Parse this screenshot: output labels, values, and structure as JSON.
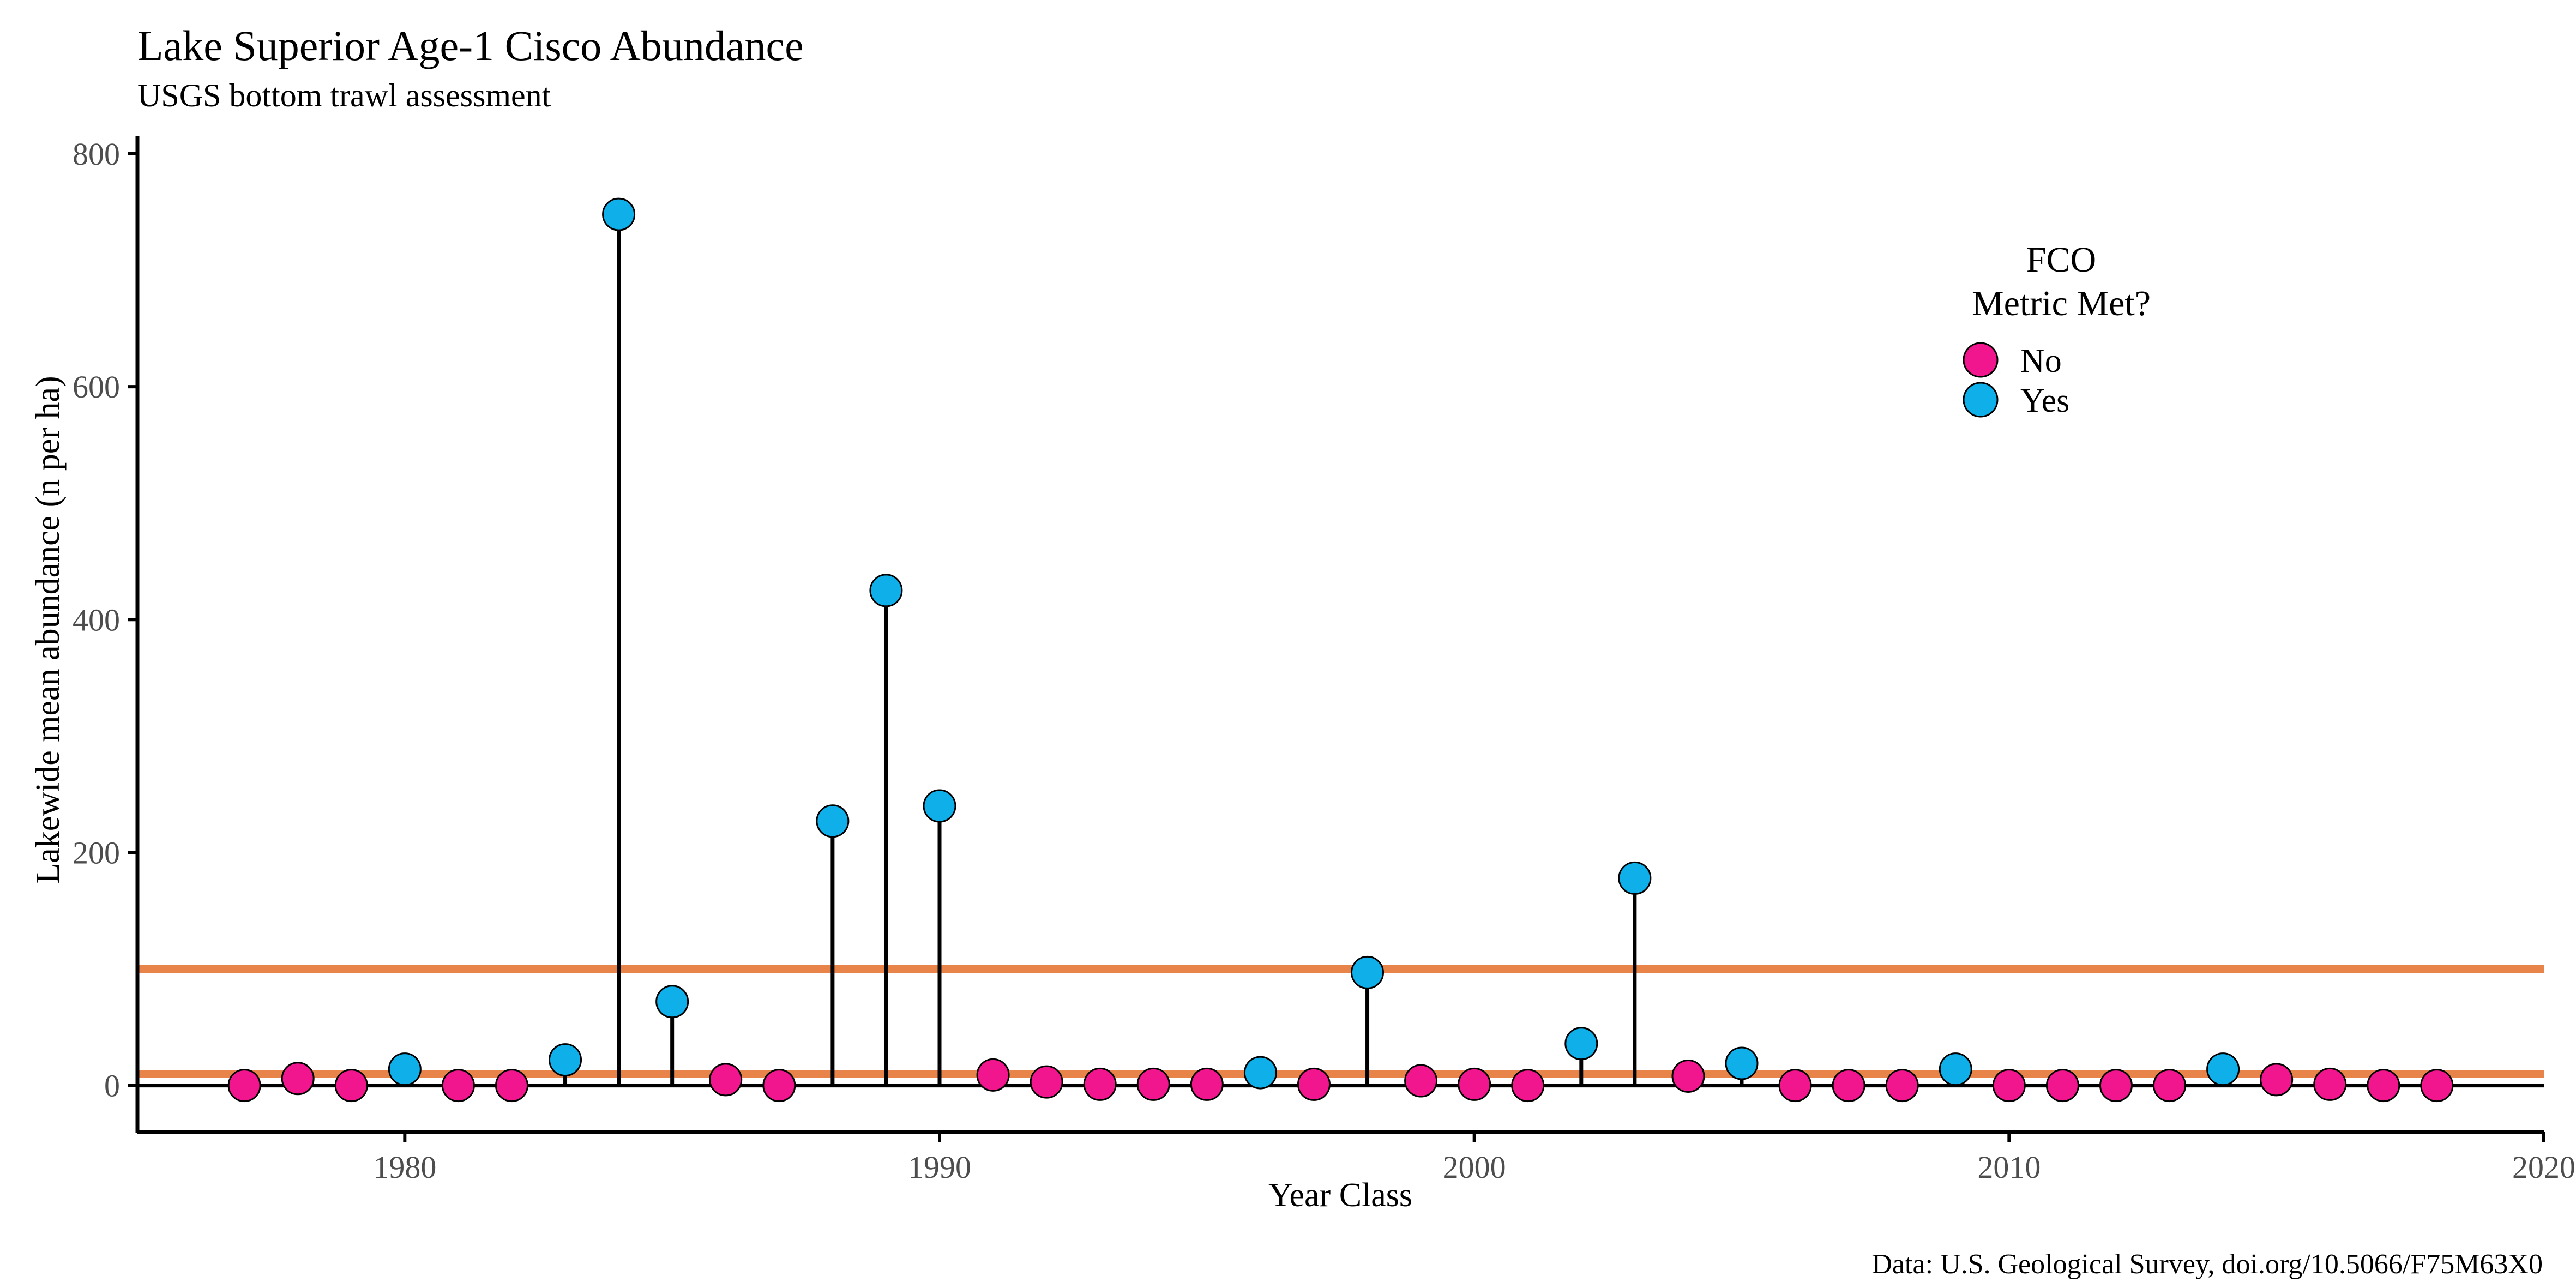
{
  "chart_data": {
    "type": "lollipop",
    "title": "Lake Superior Age-1 Cisco Abundance",
    "subtitle": "USGS bottom trawl assessment",
    "xlabel": "Year Class",
    "ylabel": "Lakewide mean abundance (n per ha)",
    "caption": "Data: U.S. Geological Survey, doi.org/10.5066/F75M63X0",
    "xlim": [
      1975,
      2020
    ],
    "ylim": [
      -40,
      815
    ],
    "x_ticks": [
      1980,
      1990,
      2000,
      2010,
      2020
    ],
    "y_ticks": [
      0,
      200,
      400,
      600,
      800
    ],
    "reference_lines": [
      {
        "y": 10,
        "color": "#E8844A"
      },
      {
        "y": 100,
        "color": "#E8844A"
      }
    ],
    "baseline": 0,
    "legend": {
      "title_line1": "FCO",
      "title_line2": "Metric Met?",
      "position": "top-right",
      "items": [
        {
          "label": "No",
          "color": "#F2168E"
        },
        {
          "label": "Yes",
          "color": "#0FB0EA"
        }
      ]
    },
    "points": [
      {
        "x": 1977,
        "y": 0,
        "met": "No"
      },
      {
        "x": 1978,
        "y": 6,
        "met": "No"
      },
      {
        "x": 1979,
        "y": 0,
        "met": "No"
      },
      {
        "x": 1980,
        "y": 14,
        "met": "Yes"
      },
      {
        "x": 1981,
        "y": 0,
        "met": "No"
      },
      {
        "x": 1982,
        "y": 0,
        "met": "No"
      },
      {
        "x": 1983,
        "y": 22,
        "met": "Yes"
      },
      {
        "x": 1984,
        "y": 748,
        "met": "Yes"
      },
      {
        "x": 1985,
        "y": 72,
        "met": "Yes"
      },
      {
        "x": 1986,
        "y": 5,
        "met": "No"
      },
      {
        "x": 1987,
        "y": 0,
        "met": "No"
      },
      {
        "x": 1988,
        "y": 227,
        "met": "Yes"
      },
      {
        "x": 1989,
        "y": 425,
        "met": "Yes"
      },
      {
        "x": 1990,
        "y": 240,
        "met": "Yes"
      },
      {
        "x": 1991,
        "y": 9,
        "met": "No"
      },
      {
        "x": 1992,
        "y": 3,
        "met": "No"
      },
      {
        "x": 1993,
        "y": 1,
        "met": "No"
      },
      {
        "x": 1994,
        "y": 1,
        "met": "No"
      },
      {
        "x": 1995,
        "y": 1,
        "met": "No"
      },
      {
        "x": 1996,
        "y": 11,
        "met": "Yes"
      },
      {
        "x": 1997,
        "y": 1,
        "met": "No"
      },
      {
        "x": 1998,
        "y": 97,
        "met": "Yes"
      },
      {
        "x": 1999,
        "y": 4,
        "met": "No"
      },
      {
        "x": 2000,
        "y": 1,
        "met": "No"
      },
      {
        "x": 2001,
        "y": 0,
        "met": "No"
      },
      {
        "x": 2002,
        "y": 36,
        "met": "Yes"
      },
      {
        "x": 2003,
        "y": 178,
        "met": "Yes"
      },
      {
        "x": 2004,
        "y": 8,
        "met": "No"
      },
      {
        "x": 2005,
        "y": 19,
        "met": "Yes"
      },
      {
        "x": 2006,
        "y": 0,
        "met": "No"
      },
      {
        "x": 2007,
        "y": 0,
        "met": "No"
      },
      {
        "x": 2008,
        "y": 0,
        "met": "No"
      },
      {
        "x": 2009,
        "y": 14,
        "met": "Yes"
      },
      {
        "x": 2010,
        "y": 0,
        "met": "No"
      },
      {
        "x": 2011,
        "y": 0,
        "met": "No"
      },
      {
        "x": 2012,
        "y": 0,
        "met": "No"
      },
      {
        "x": 2013,
        "y": 0,
        "met": "No"
      },
      {
        "x": 2014,
        "y": 14,
        "met": "Yes"
      },
      {
        "x": 2015,
        "y": 5,
        "met": "No"
      },
      {
        "x": 2016,
        "y": 1,
        "met": "No"
      },
      {
        "x": 2017,
        "y": 0,
        "met": "No"
      },
      {
        "x": 2018,
        "y": 0,
        "met": "No"
      }
    ]
  }
}
